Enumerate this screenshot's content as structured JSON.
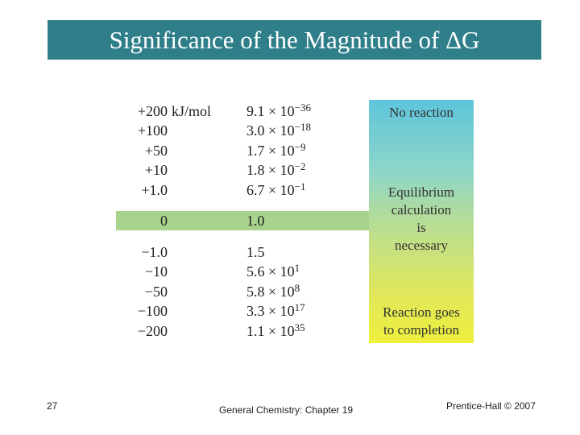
{
  "title": "Significance of the Magnitude of ΔG",
  "unit": "kJ/mol",
  "rows": [
    {
      "dg": "+200",
      "k_base": "9.1 × 10",
      "k_exp": "−36"
    },
    {
      "dg": "+100",
      "k_base": "3.0 × 10",
      "k_exp": "−18"
    },
    {
      "dg": "+50",
      "k_base": "1.7 × 10",
      "k_exp": "−9"
    },
    {
      "dg": "+10",
      "k_base": "1.8 × 10",
      "k_exp": "−2"
    },
    {
      "dg": "+1.0",
      "k_base": "6.7 × 10",
      "k_exp": "−1"
    },
    {
      "dg": "0",
      "k_base": "1.0",
      "k_exp": ""
    },
    {
      "dg": "−1.0",
      "k_base": "1.5",
      "k_exp": ""
    },
    {
      "dg": "−10",
      "k_base": "5.6 × 10",
      "k_exp": "1"
    },
    {
      "dg": "−50",
      "k_base": "5.8 × 10",
      "k_exp": "8"
    },
    {
      "dg": "−100",
      "k_base": "3.3 × 10",
      "k_exp": "17"
    },
    {
      "dg": "−200",
      "k_base": "1.1 × 10",
      "k_exp": "35"
    }
  ],
  "panel": {
    "top": "No reaction",
    "middle": [
      "Equilibrium",
      "calculation",
      "is",
      "necessary"
    ],
    "bottom": [
      "Reaction goes",
      "to completion"
    ]
  },
  "footer": {
    "slide_number": "27",
    "course": "General Chemistry: Chapter 19",
    "copyright": "Prentice-Hall © 2007"
  }
}
